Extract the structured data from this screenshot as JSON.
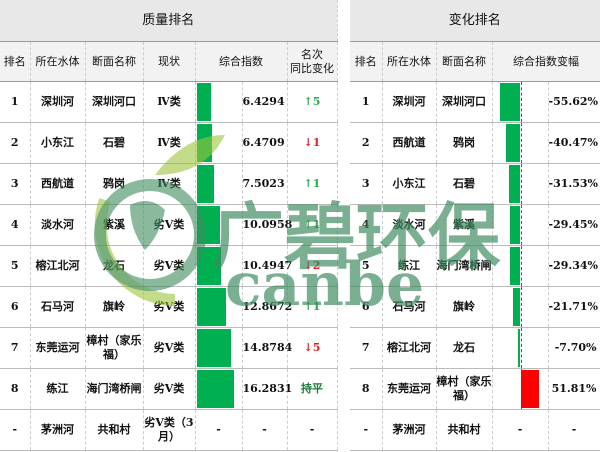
{
  "quality": {
    "title": "质量排名",
    "headers": [
      "排名",
      "所在水体",
      "断面名称",
      "现状",
      "综合指数",
      "名次\n同比变化"
    ],
    "rows": [
      {
        "rank": "1",
        "water": "深圳河",
        "section": "深圳河口",
        "status": "Ⅳ类",
        "index": 6.4294,
        "index_text": "6.4294",
        "change": "↑5",
        "dir": "up"
      },
      {
        "rank": "2",
        "water": "小东江",
        "section": "石碧",
        "status": "Ⅳ类",
        "index": 6.4709,
        "index_text": "6.4709",
        "change": "↓1",
        "dir": "down"
      },
      {
        "rank": "3",
        "water": "西航道",
        "section": "鸦岗",
        "status": "Ⅳ类",
        "index": 7.5023,
        "index_text": "7.5023",
        "change": "↑1",
        "dir": "up"
      },
      {
        "rank": "4",
        "water": "淡水河",
        "section": "紫溪",
        "status": "劣Ⅴ类",
        "index": 10.0958,
        "index_text": "10.0958",
        "change": "↑1",
        "dir": "up"
      },
      {
        "rank": "5",
        "water": "榕江北河",
        "section": "龙石",
        "status": "劣Ⅴ类",
        "index": 10.4947,
        "index_text": "10.4947",
        "change": "↓2",
        "dir": "down"
      },
      {
        "rank": "6",
        "water": "石马河",
        "section": "旗岭",
        "status": "劣Ⅴ类",
        "index": 12.8672,
        "index_text": "12.8672",
        "change": "↑1",
        "dir": "up"
      },
      {
        "rank": "7",
        "water": "东莞运河",
        "section": "樟村（家乐福）",
        "status": "劣Ⅴ类",
        "index": 14.8784,
        "index_text": "14.8784",
        "change": "↓5",
        "dir": "down"
      },
      {
        "rank": "8",
        "water": "练江",
        "section": "海门湾桥闸",
        "status": "劣Ⅴ类",
        "index": 16.2831,
        "index_text": "16.2831",
        "change": "持平",
        "dir": "flat"
      },
      {
        "rank": "-",
        "water": "茅洲河",
        "section": "共和村",
        "status": "劣Ⅴ类（3月）",
        "index": null,
        "index_text": "-",
        "change": "-",
        "dir": "none",
        "bar_text": "-"
      }
    ]
  },
  "change": {
    "title": "变化排名",
    "headers": [
      "排名",
      "所在水体",
      "断面名称",
      "综合指数变幅"
    ],
    "rows": [
      {
        "rank": "1",
        "water": "深圳河",
        "section": "深圳河口",
        "pct": -55.62,
        "pct_text": "-55.62%"
      },
      {
        "rank": "2",
        "water": "西航道",
        "section": "鸦岗",
        "pct": -40.47,
        "pct_text": "-40.47%"
      },
      {
        "rank": "3",
        "water": "小东江",
        "section": "石碧",
        "pct": -31.53,
        "pct_text": "-31.53%"
      },
      {
        "rank": "4",
        "water": "淡水河",
        "section": "紫溪",
        "pct": -29.45,
        "pct_text": "-29.45%"
      },
      {
        "rank": "5",
        "water": "练江",
        "section": "海门湾桥闸",
        "pct": -29.34,
        "pct_text": "-29.34%"
      },
      {
        "rank": "6",
        "water": "石马河",
        "section": "旗岭",
        "pct": -21.71,
        "pct_text": "-21.71%"
      },
      {
        "rank": "7",
        "water": "榕江北河",
        "section": "龙石",
        "pct": -7.7,
        "pct_text": "-7.70%"
      },
      {
        "rank": "8",
        "water": "东莞运河",
        "section": "樟村（家乐福）",
        "pct": 51.81,
        "pct_text": "51.81%"
      },
      {
        "rank": "-",
        "water": "茅洲河",
        "section": "共和村",
        "pct": null,
        "pct_text": "-",
        "bar_text": "-"
      }
    ]
  },
  "colors": {
    "bar_positive": "#00b050",
    "bar_negative_change": "#00b050",
    "bar_increase": "#ff0000",
    "up": "#2aa84a",
    "down": "#e02020"
  },
  "watermark": {
    "cn": "广碧环保",
    "en": "canbe"
  }
}
